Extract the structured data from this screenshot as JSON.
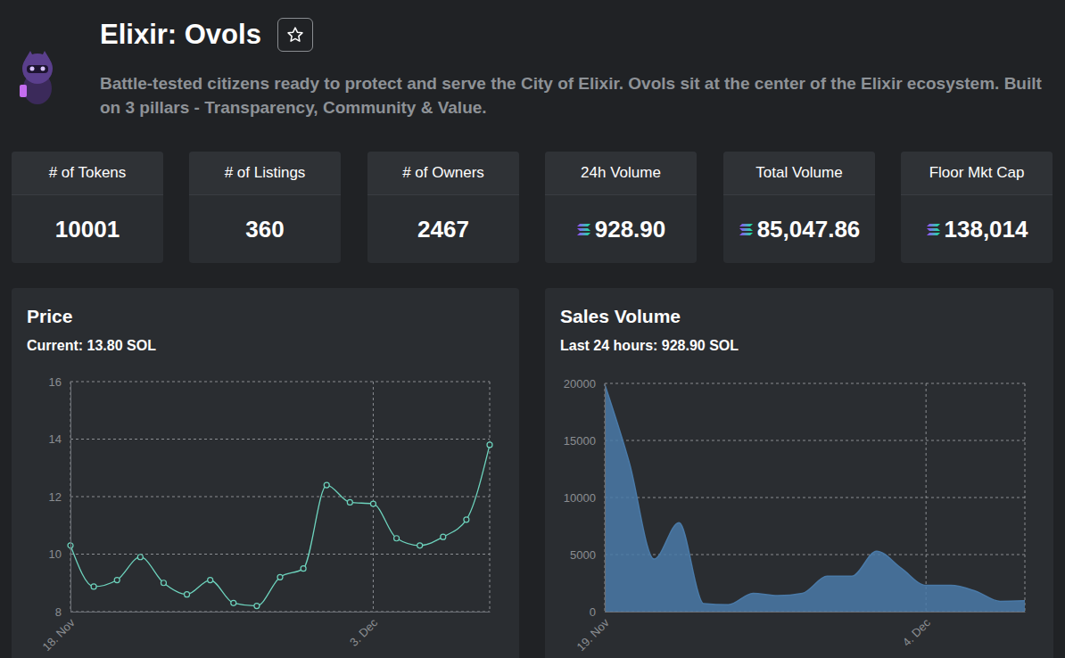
{
  "header": {
    "title": "Elixir: Ovols",
    "description": "Battle-tested citizens ready to protect and serve the City of Elixir. Ovols sit at the center of the Elixir ecosystem. Built on 3 pillars - Transparency, Community & Value."
  },
  "stats": [
    {
      "label": "# of Tokens",
      "value": "10001"
    },
    {
      "label": "# of Listings",
      "value": "360"
    },
    {
      "label": "# of Owners",
      "value": "2467"
    },
    {
      "label": "24h Volume",
      "value": "928.90"
    },
    {
      "label": "Total Volume",
      "value": "85,047.86"
    },
    {
      "label": "Floor Mkt Cap",
      "value": "138,014"
    }
  ],
  "chart_data": [
    {
      "type": "line",
      "title": "Price",
      "subtitle": "Current: 13.80 SOL",
      "categories": [
        "18. Nov",
        null,
        null,
        null,
        null,
        null,
        null,
        null,
        null,
        null,
        null,
        null,
        null,
        "3. Dec",
        null,
        null,
        null,
        null,
        null
      ],
      "values": [
        10.3,
        8.87,
        9.1,
        9.9,
        9.0,
        8.6,
        9.1,
        8.3,
        8.2,
        9.2,
        9.5,
        12.4,
        11.8,
        11.75,
        10.55,
        10.3,
        10.6,
        11.2,
        13.8
      ],
      "color": "#6dd3bd",
      "marker": "circle",
      "ylim": [
        8,
        16
      ],
      "yticks": [
        8,
        10,
        12,
        14,
        16
      ],
      "grid": true
    },
    {
      "type": "area",
      "title": "Sales Volume",
      "subtitle": "Last 24 hours: 928.90 SOL",
      "categories": [
        "19. Nov",
        null,
        null,
        null,
        null,
        null,
        null,
        null,
        null,
        null,
        null,
        null,
        null,
        "4. Dec",
        null,
        null,
        null,
        null
      ],
      "values": [
        19900,
        13000,
        4600,
        7800,
        700,
        600,
        1600,
        1400,
        1600,
        3100,
        3100,
        5300,
        3800,
        2300,
        2300,
        1800,
        900,
        950
      ],
      "color": "#4a7aa8",
      "ylim": [
        0,
        20000
      ],
      "yticks": [
        0,
        5000,
        10000,
        15000,
        20000
      ],
      "grid": true
    }
  ]
}
